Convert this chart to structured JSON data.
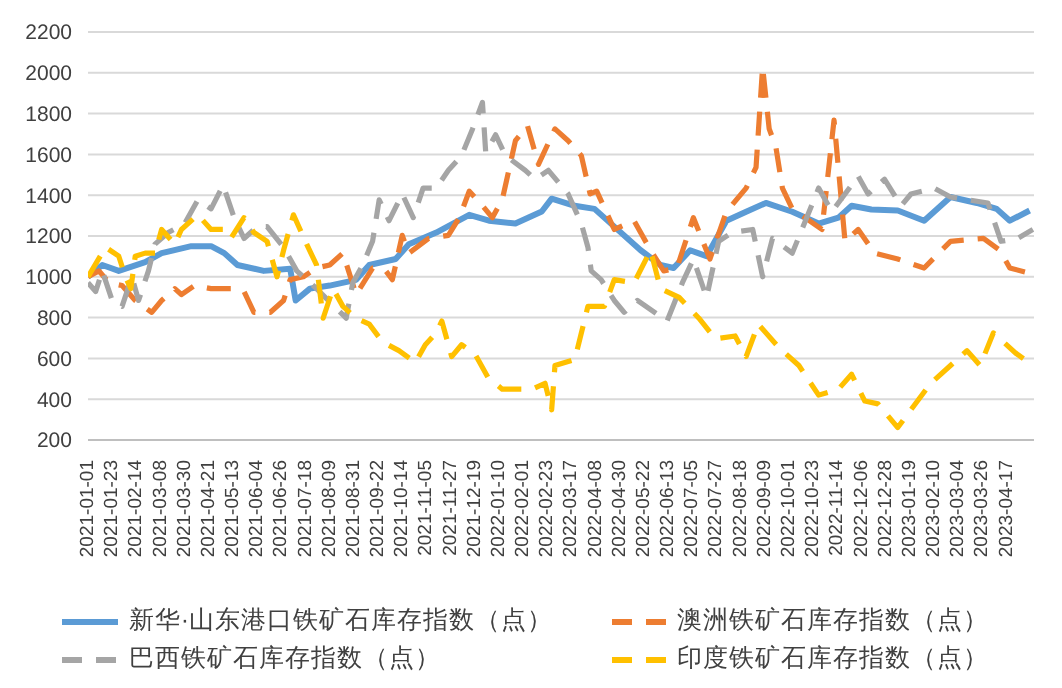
{
  "chart_data": {
    "type": "line",
    "xlim": [
      "2021-01-01",
      "2023-05-12"
    ],
    "ylim": [
      200,
      2200
    ],
    "yticks": [
      200,
      400,
      600,
      800,
      1000,
      1200,
      1400,
      1600,
      1800,
      2000,
      2200
    ],
    "xticks": [
      "2021-01-01",
      "2021-01-23",
      "2021-02-14",
      "2021-03-08",
      "2021-03-30",
      "2021-04-21",
      "2021-05-13",
      "2021-06-04",
      "2021-06-26",
      "2021-07-18",
      "2021-08-09",
      "2021-08-31",
      "2021-09-22",
      "2021-10-14",
      "2021-11-05",
      "2021-11-27",
      "2021-12-19",
      "2022-01-10",
      "2022-02-01",
      "2022-02-23",
      "2022-03-17",
      "2022-04-08",
      "2022-04-30",
      "2022-05-22",
      "2022-06-13",
      "2022-07-05",
      "2022-07-27",
      "2022-08-18",
      "2022-09-09",
      "2022-10-01",
      "2022-10-23",
      "2022-11-14",
      "2022-12-06",
      "2022-12-28",
      "2023-01-19",
      "2023-02-10",
      "2023-03-04",
      "2023-03-26",
      "2023-04-17"
    ],
    "grid": "y",
    "legend": "bottom",
    "marker": "none",
    "series": [
      {
        "name": "新华·山东港口铁矿石库存指数（点）",
        "color": "#5b9bd5",
        "line_style": "solid",
        "x": [
          "2021-01-01",
          "2021-01-14",
          "2021-01-29",
          "2021-02-22",
          "2021-03-09",
          "2021-04-05",
          "2021-04-23",
          "2021-05-05",
          "2021-05-17",
          "2021-06-10",
          "2021-07-04",
          "2021-07-09",
          "2021-07-22",
          "2021-08-09",
          "2021-09-02",
          "2021-09-14",
          "2021-10-08",
          "2021-10-20",
          "2021-11-14",
          "2021-12-14",
          "2022-01-01",
          "2022-01-25",
          "2022-02-18",
          "2022-02-27",
          "2022-03-20",
          "2022-04-07",
          "2022-04-25",
          "2022-05-19",
          "2022-06-06",
          "2022-06-18",
          "2022-07-03",
          "2022-07-18",
          "2022-08-05",
          "2022-08-23",
          "2022-09-10",
          "2022-10-04",
          "2022-10-28",
          "2022-11-15",
          "2022-11-27",
          "2022-12-15",
          "2023-01-08",
          "2023-02-01",
          "2023-02-25",
          "2023-03-21",
          "2023-04-08",
          "2023-04-20",
          "2023-05-08"
        ],
        "values": [
          1000,
          1058,
          1029,
          1072,
          1116,
          1150,
          1150,
          1116,
          1058,
          1029,
          1040,
          884,
          942,
          957,
          985,
          1058,
          1087,
          1160,
          1217,
          1304,
          1275,
          1261,
          1320,
          1383,
          1348,
          1333,
          1246,
          1130,
          1058,
          1043,
          1130,
          1101,
          1275,
          1319,
          1362,
          1319,
          1261,
          1290,
          1348,
          1330,
          1325,
          1275,
          1391,
          1362,
          1333,
          1275,
          1325
        ]
      },
      {
        "name": "澳洲铁矿石库存指数（点）",
        "color": "#ed7d31",
        "line_style": "dashed",
        "x": [
          "2021-01-01",
          "2021-01-11",
          "2021-01-20",
          "2021-02-01",
          "2021-02-13",
          "2021-02-28",
          "2021-03-09",
          "2021-03-21",
          "2021-03-27",
          "2021-04-08",
          "2021-04-23",
          "2021-05-11",
          "2021-05-23",
          "2021-06-01",
          "2021-06-16",
          "2021-06-28",
          "2021-07-04",
          "2021-07-16",
          "2021-07-28",
          "2021-08-09",
          "2021-08-21",
          "2021-09-02",
          "2021-09-17",
          "2021-09-29",
          "2021-10-05",
          "2021-10-14",
          "2021-10-20",
          "2021-11-07",
          "2021-11-25",
          "2021-12-05",
          "2021-12-14",
          "2021-12-26",
          "2022-01-04",
          "2022-01-13",
          "2022-01-25",
          "2022-02-05",
          "2022-02-15",
          "2022-03-02",
          "2022-03-14",
          "2022-03-26",
          "2022-04-03",
          "2022-04-09",
          "2022-04-25",
          "2022-05-13",
          "2022-05-28",
          "2022-06-09",
          "2022-06-21",
          "2022-07-06",
          "2022-07-21",
          "2022-08-05",
          "2022-08-23",
          "2022-09-01",
          "2022-09-07",
          "2022-09-13",
          "2022-09-19",
          "2022-09-25",
          "2022-10-04",
          "2022-10-31",
          "2022-11-11",
          "2022-11-21",
          "2022-12-03",
          "2022-12-18",
          "2023-01-08",
          "2023-02-01",
          "2023-02-25",
          "2023-03-27",
          "2023-04-11",
          "2023-04-20",
          "2023-05-11"
        ],
        "values": [
          1000,
          1029,
          971,
          957,
          884,
          826,
          884,
          942,
          913,
          957,
          942,
          942,
          928,
          826,
          826,
          884,
          986,
          1000,
          1043,
          1058,
          1116,
          913,
          1043,
          1029,
          986,
          1203,
          1116,
          1188,
          1203,
          1290,
          1420,
          1348,
          1290,
          1377,
          1667,
          1740,
          1551,
          1725,
          1667,
          1594,
          1406,
          1420,
          1232,
          1275,
          1130,
          1029,
          1043,
          1290,
          1087,
          1319,
          1435,
          1536,
          2029,
          1725,
          1638,
          1435,
          1333,
          1232,
          1768,
          1174,
          1232,
          1116,
          1087,
          1043,
          1174,
          1188,
          1130,
          1043,
          1014
        ]
      },
      {
        "name": "巴西铁矿石库存指数（点）",
        "color": "#a5a5a5",
        "line_style": "dashed",
        "x": [
          "2021-01-01",
          "2021-01-08",
          "2021-01-14",
          "2021-01-23",
          "2021-02-01",
          "2021-02-10",
          "2021-02-16",
          "2021-02-25",
          "2021-03-03",
          "2021-03-15",
          "2021-03-30",
          "2021-04-11",
          "2021-04-23",
          "2021-05-04",
          "2021-05-14",
          "2021-05-23",
          "2021-06-04",
          "2021-06-13",
          "2021-06-28",
          "2021-07-10",
          "2021-07-28",
          "2021-08-24",
          "2021-08-30",
          "2021-09-08",
          "2021-09-17",
          "2021-09-23",
          "2021-10-02",
          "2021-10-14",
          "2021-10-24",
          "2021-11-02",
          "2021-11-14",
          "2021-11-25",
          "2021-12-07",
          "2021-12-17",
          "2021-12-26",
          "2021-12-29",
          "2022-01-07",
          "2022-01-16",
          "2022-02-03",
          "2022-02-12",
          "2022-02-24",
          "2022-03-14",
          "2022-03-26",
          "2022-04-01",
          "2022-04-04",
          "2022-04-13",
          "2022-04-25",
          "2022-05-04",
          "2022-05-16",
          "2022-06-12",
          "2022-06-26",
          "2022-07-06",
          "2022-07-18",
          "2022-07-29",
          "2022-08-10",
          "2022-08-29",
          "2022-09-07",
          "2022-09-16",
          "2022-10-04",
          "2022-10-28",
          "2022-11-09",
          "2022-12-03",
          "2022-12-12",
          "2022-12-27",
          "2023-01-11",
          "2023-01-20",
          "2023-02-10",
          "2023-02-25",
          "2023-03-31",
          "2023-04-12",
          "2023-04-27",
          "2023-05-11"
        ],
        "values": [
          971,
          928,
          1029,
          884,
          855,
          1000,
          884,
          1029,
          1160,
          1217,
          1261,
          1377,
          1333,
          1449,
          1290,
          1188,
          1246,
          1246,
          1145,
          1029,
          942,
          797,
          971,
          1058,
          1174,
          1377,
          1275,
          1406,
          1290,
          1435,
          1435,
          1522,
          1594,
          1725,
          1855,
          1609,
          1696,
          1594,
          1522,
          1478,
          1522,
          1406,
          1261,
          1145,
          1029,
          986,
          884,
          826,
          884,
          783,
          971,
          1087,
          899,
          1174,
          1217,
          1232,
          1000,
          1188,
          1116,
          1435,
          1319,
          1493,
          1406,
          1478,
          1348,
          1406,
          1435,
          1391,
          1362,
          1174,
          1188,
          1232
        ]
      },
      {
        "name": "印度铁矿石库存指数（点）",
        "color": "#ffc000",
        "line_style": "dashed",
        "x": [
          "2021-01-01",
          "2021-01-17",
          "2021-01-29",
          "2021-02-04",
          "2021-02-09",
          "2021-02-13",
          "2021-02-22",
          "2021-03-03",
          "2021-03-09",
          "2021-03-21",
          "2021-03-27",
          "2021-04-11",
          "2021-04-23",
          "2021-05-05",
          "2021-05-11",
          "2021-05-23",
          "2021-06-01",
          "2021-06-13",
          "2021-06-22",
          "2021-06-28",
          "2021-07-07",
          "2021-07-19",
          "2021-07-28",
          "2021-08-03",
          "2021-08-12",
          "2021-08-21",
          "2021-09-02",
          "2021-09-14",
          "2021-09-26",
          "2021-10-11",
          "2021-10-26",
          "2021-11-04",
          "2021-11-14",
          "2021-11-19",
          "2021-11-28",
          "2021-12-07",
          "2021-12-19",
          "2021-12-31",
          "2022-01-13",
          "2022-01-31",
          "2022-02-09",
          "2022-02-21",
          "2022-02-27",
          "2022-03-02",
          "2022-03-20",
          "2022-04-01",
          "2022-04-16",
          "2022-04-25",
          "2022-05-13",
          "2022-05-28",
          "2022-06-06",
          "2022-06-23",
          "2022-07-11",
          "2022-07-26",
          "2022-08-13",
          "2022-08-23",
          "2022-09-03",
          "2022-09-22",
          "2022-10-10",
          "2022-10-28",
          "2022-11-15",
          "2022-11-27",
          "2022-12-09",
          "2022-12-21",
          "2023-01-08",
          "2023-01-20",
          "2023-02-07",
          "2023-02-25",
          "2023-03-12",
          "2023-03-24",
          "2023-04-05",
          "2023-04-26",
          "2023-05-11"
        ],
        "values": [
          1000,
          1145,
          1101,
          1000,
          942,
          1101,
          1116,
          1116,
          1232,
          1160,
          1232,
          1304,
          1232,
          1232,
          1188,
          1290,
          1217,
          1174,
          1000,
          1130,
          1304,
          1160,
          1058,
          797,
          942,
          855,
          797,
          768,
          681,
          638,
          580,
          667,
          725,
          783,
          609,
          667,
          623,
          507,
          449,
          449,
          449,
          478,
          348,
          565,
          594,
          855,
          855,
          986,
          971,
          1130,
          942,
          899,
          797,
          696,
          710,
          609,
          768,
          652,
          565,
          420,
          449,
          522,
          391,
          377,
          261,
          348,
          478,
          565,
          638,
          565,
          725,
          623,
          565
        ]
      }
    ]
  }
}
